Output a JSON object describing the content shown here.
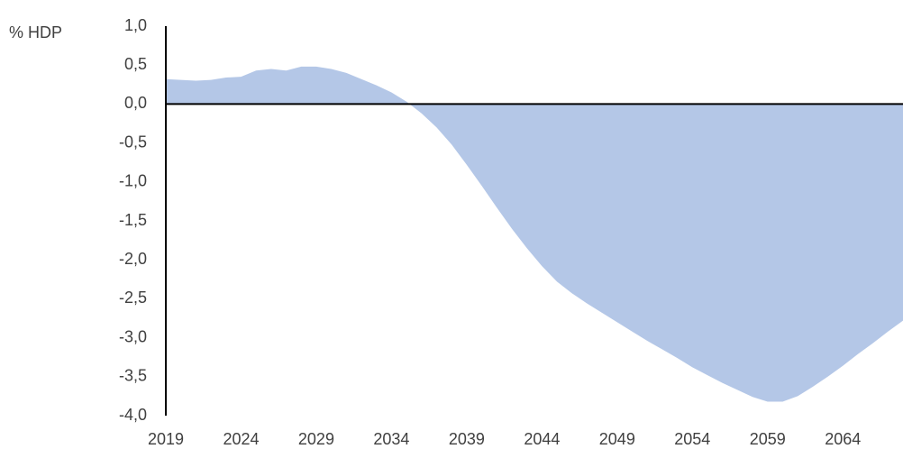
{
  "chart_data": {
    "type": "area",
    "y_label": "% HDP",
    "color": "#b4c7e7",
    "x": [
      2019,
      2020,
      2021,
      2022,
      2023,
      2024,
      2025,
      2026,
      2027,
      2028,
      2029,
      2030,
      2031,
      2032,
      2033,
      2034,
      2035,
      2036,
      2037,
      2038,
      2039,
      2040,
      2041,
      2042,
      2043,
      2044,
      2045,
      2046,
      2047,
      2048,
      2049,
      2050,
      2051,
      2052,
      2053,
      2054,
      2055,
      2056,
      2057,
      2058,
      2059,
      2060,
      2061,
      2062,
      2063,
      2064,
      2065,
      2066,
      2067,
      2068
    ],
    "values": [
      0.32,
      0.31,
      0.3,
      0.31,
      0.34,
      0.35,
      0.43,
      0.45,
      0.43,
      0.48,
      0.48,
      0.45,
      0.4,
      0.32,
      0.24,
      0.15,
      0.03,
      -0.12,
      -0.3,
      -0.52,
      -0.78,
      -1.05,
      -1.33,
      -1.6,
      -1.85,
      -2.08,
      -2.28,
      -2.43,
      -2.56,
      -2.68,
      -2.8,
      -2.92,
      -3.04,
      -3.15,
      -3.26,
      -3.38,
      -3.48,
      -3.58,
      -3.67,
      -3.76,
      -3.82,
      -3.82,
      -3.75,
      -3.63,
      -3.5,
      -3.36,
      -3.21,
      -3.07,
      -2.92,
      -2.78
    ],
    "xlim": [
      2019,
      2068
    ],
    "xticks": [
      2019,
      2024,
      2029,
      2034,
      2039,
      2044,
      2049,
      2054,
      2059,
      2064
    ],
    "ylim": [
      -4,
      1
    ],
    "yticks": [
      {
        "value": -4,
        "label": "-4,0"
      },
      {
        "value": -3.5,
        "label": "-3,5"
      },
      {
        "value": -3,
        "label": "-3,0"
      },
      {
        "value": -2.5,
        "label": "-2,5"
      },
      {
        "value": -2,
        "label": "-2,0"
      },
      {
        "value": -1.5,
        "label": "-1,5"
      },
      {
        "value": -1,
        "label": "-1,0"
      },
      {
        "value": -0.5,
        "label": "-0,5"
      },
      {
        "value": 0,
        "label": "0,0"
      },
      {
        "value": 0.5,
        "label": "0,5"
      },
      {
        "value": 1,
        "label": "1,0"
      }
    ]
  }
}
